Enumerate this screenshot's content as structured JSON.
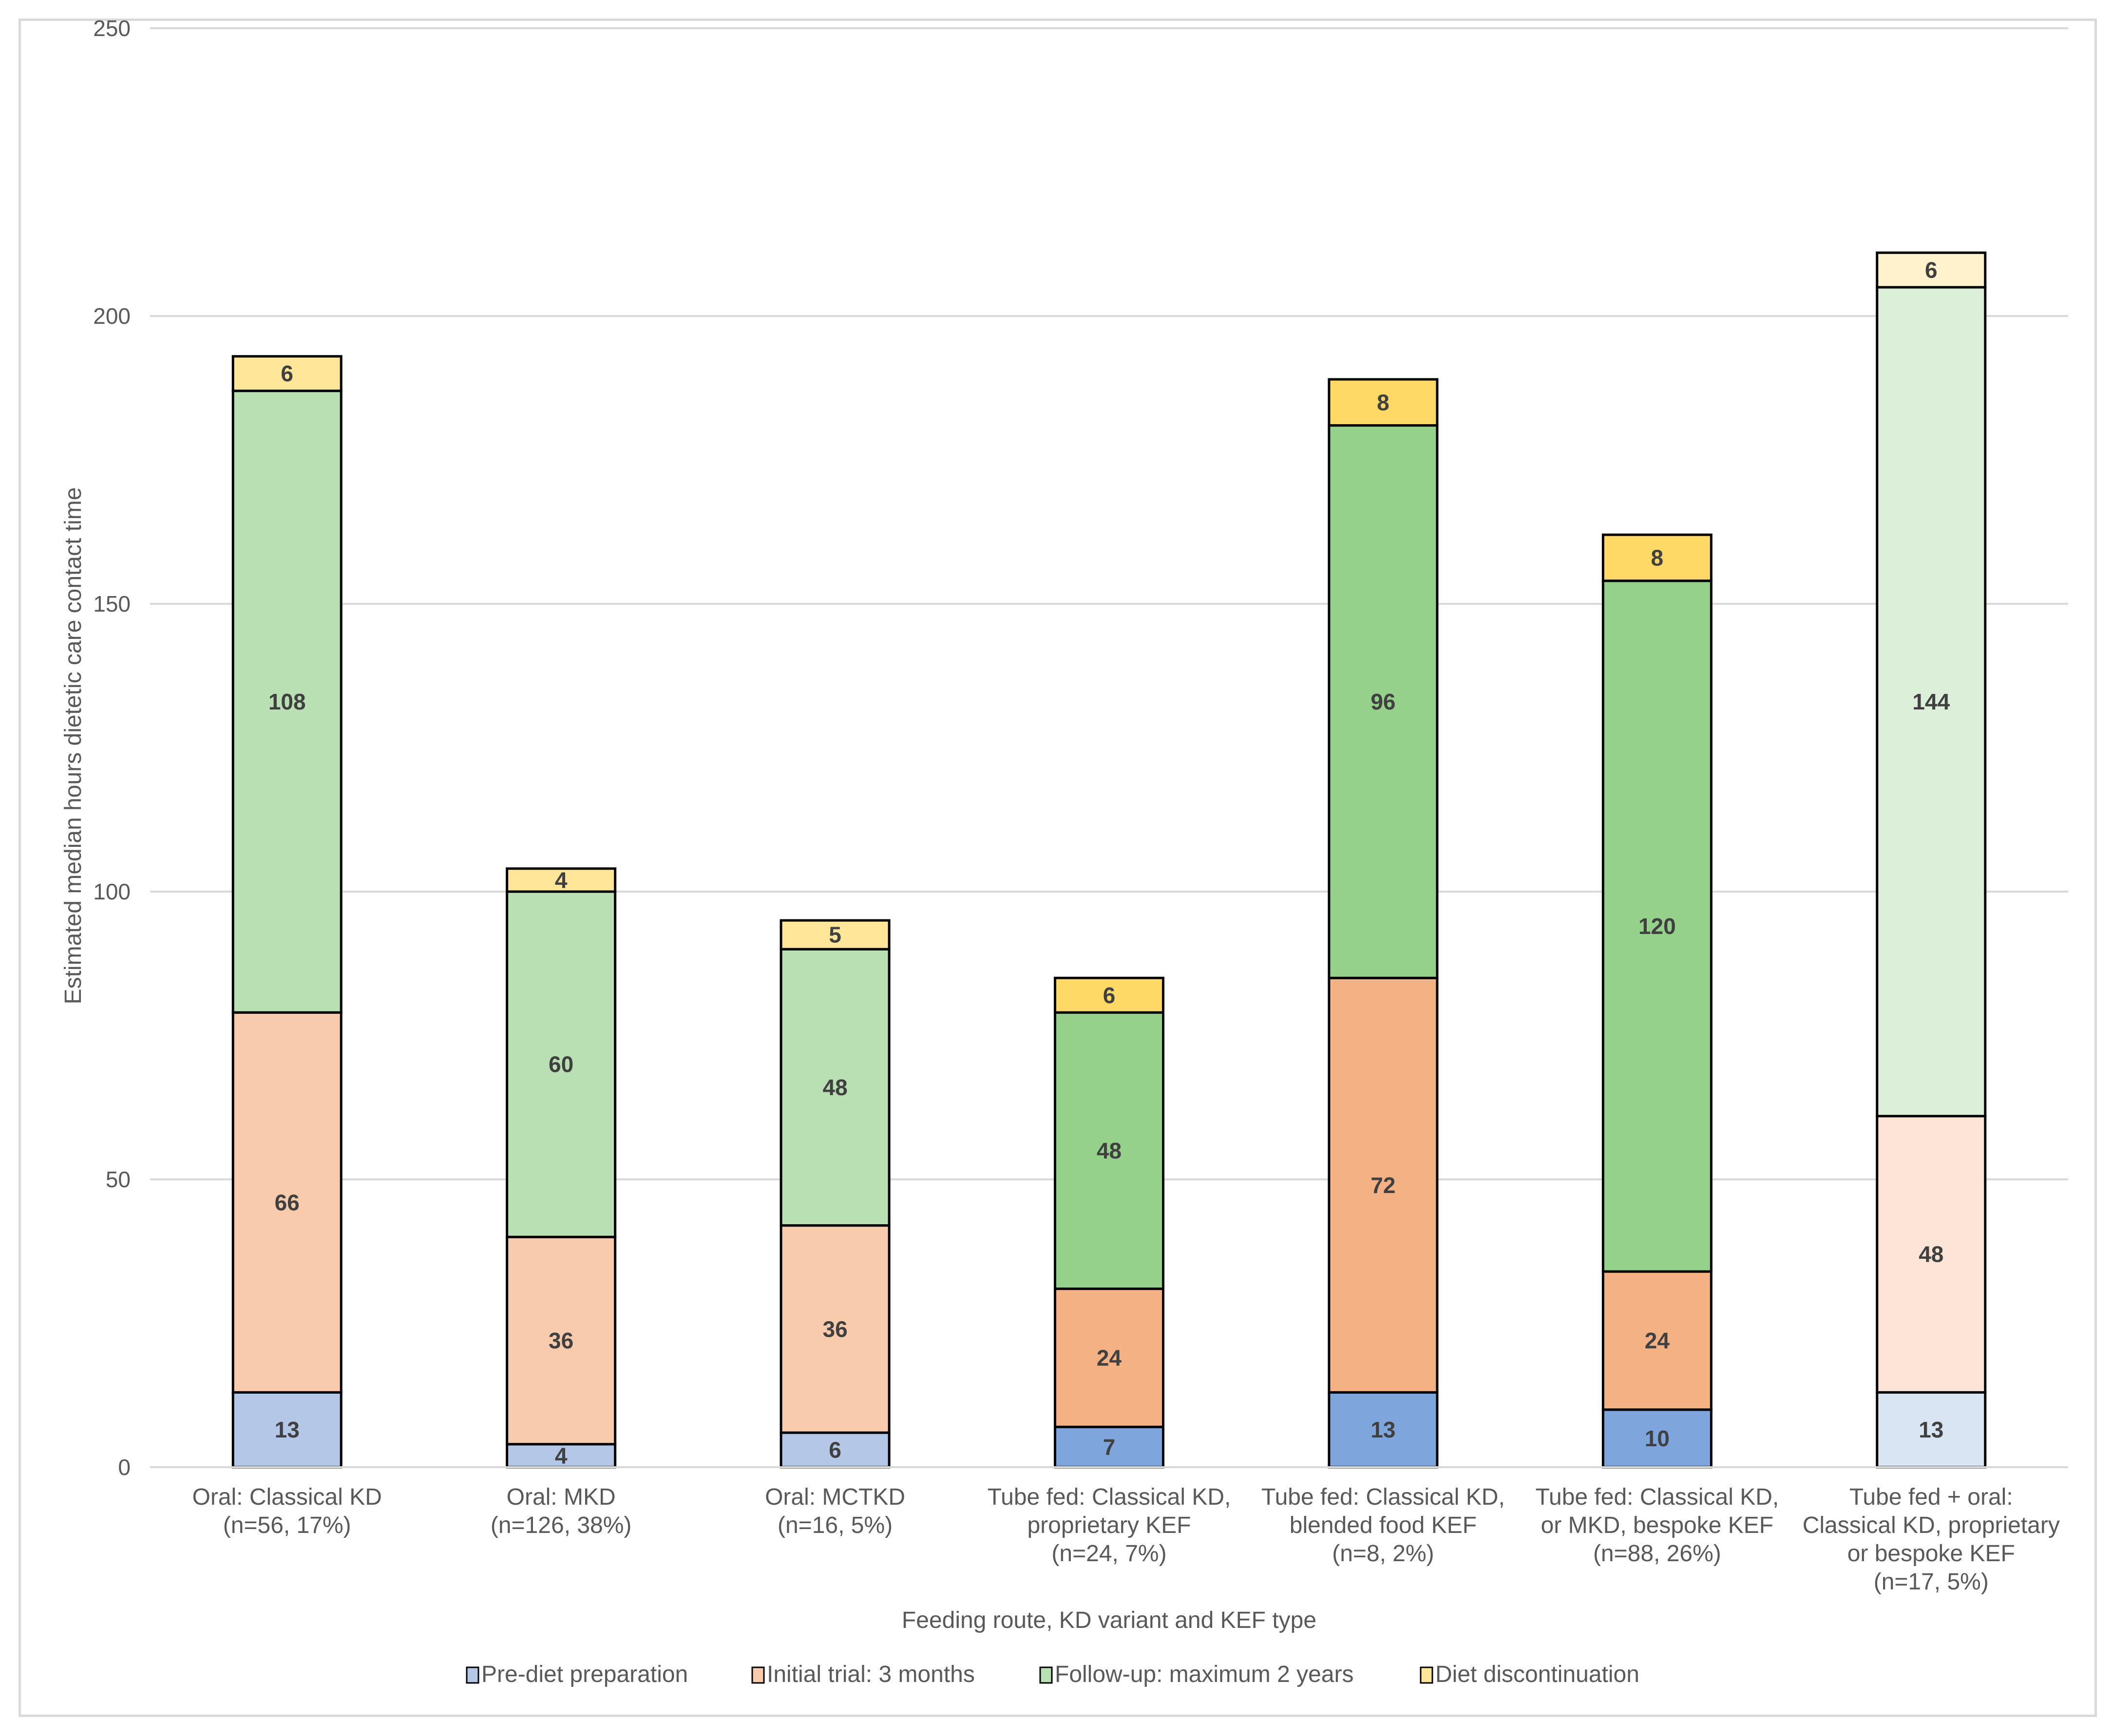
{
  "chart_data": {
    "type": "bar",
    "stacked": true,
    "title": "",
    "xlabel": "Feeding route, KD variant and KEF type",
    "ylabel": "Estimated median hours dietetic care contact time",
    "ylim": [
      0,
      250
    ],
    "yticks": [
      0,
      50,
      100,
      150,
      200,
      250
    ],
    "grid": true,
    "legend_position": "bottom",
    "categories": [
      [
        "Oral: Classical KD",
        "(n=56, 17%)"
      ],
      [
        "Oral: MKD",
        "(n=126, 38%)"
      ],
      [
        "Oral: MCTKD",
        "(n=16, 5%)"
      ],
      [
        "Tube fed: Classical KD,",
        "proprietary KEF",
        "(n=24, 7%)"
      ],
      [
        "Tube fed: Classical KD,",
        "blended food KEF",
        "(n=8, 2%)"
      ],
      [
        "Tube fed: Classical KD,",
        "or MKD, bespoke KEF",
        "(n=88, 26%)"
      ],
      [
        "Tube fed + oral:",
        "Classical KD, proprietary",
        "or bespoke KEF",
        "(n=17, 5%)"
      ]
    ],
    "series": [
      {
        "name": "Pre-diet preparation",
        "values": [
          13,
          4,
          6,
          7,
          13,
          10,
          13
        ]
      },
      {
        "name": "Initial trial: 3 months",
        "values": [
          66,
          36,
          36,
          24,
          72,
          24,
          48
        ]
      },
      {
        "name": "Follow-up: maximum 2 years",
        "values": [
          108,
          60,
          48,
          48,
          96,
          120,
          144
        ]
      },
      {
        "name": "Diet discontinuation",
        "values": [
          6,
          4,
          5,
          6,
          8,
          8,
          6
        ]
      }
    ],
    "bar_colors": [
      [
        "#b4c7e7",
        "#f8cbad",
        "#b9e0b3",
        "#ffe699"
      ],
      [
        "#b4c7e7",
        "#f8cbad",
        "#b9e0b3",
        "#ffe699"
      ],
      [
        "#b4c7e7",
        "#f8cbad",
        "#b9e0b3",
        "#ffe699"
      ],
      [
        "#7ea6dc",
        "#f4b183",
        "#96d18c",
        "#ffd966"
      ],
      [
        "#7ea6dc",
        "#f4b183",
        "#96d18c",
        "#ffd966"
      ],
      [
        "#7ea6dc",
        "#f4b183",
        "#96d18c",
        "#ffd966"
      ],
      [
        "#dae5f3",
        "#fce4d6",
        "#dcefd9",
        "#fff2cc"
      ]
    ],
    "legend_colors": [
      "#b4c7e7",
      "#f8cbad",
      "#b9e0b3",
      "#ffe699"
    ]
  }
}
